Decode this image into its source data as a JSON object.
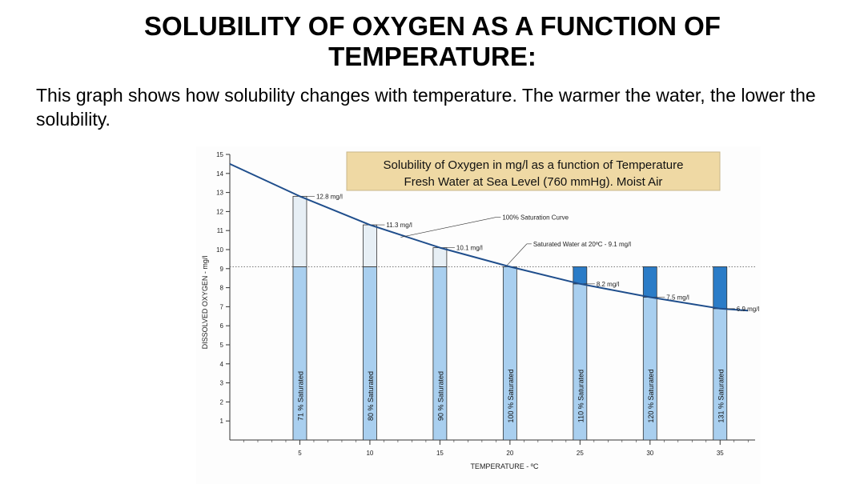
{
  "slide": {
    "title": "SOLUBILITY OF OXYGEN AS A FUNCTION OF TEMPERATURE:",
    "body": "This graph shows how solubility changes with temperature.  The warmer the water, the lower the solubility."
  },
  "chart_data": {
    "type": "bar",
    "title": "Solubility of Oxygen in mg/l as a function of Temperature",
    "subtitle": "Fresh Water at Sea Level (760 mmHg).  Moist Air",
    "xlabel": "TEMPERATURE - ºC",
    "ylabel": "DISSOLVED OXYGEN  -  mg/l",
    "xlim": [
      0,
      37.5
    ],
    "ylim": [
      0,
      15
    ],
    "x_ticks": [
      5,
      10,
      15,
      20,
      25,
      30,
      35
    ],
    "y_ticks": [
      1,
      2,
      3,
      4,
      5,
      6,
      7,
      8,
      9,
      10,
      11,
      12,
      13,
      14,
      15
    ],
    "reference_line": {
      "value": 9.1,
      "label": "Saturated Water at 20ºC - 9.1 mg/l"
    },
    "curve": {
      "label": "100% Saturation Curve",
      "x": [
        0,
        5,
        10,
        15,
        20,
        25,
        30,
        35,
        37
      ],
      "y": [
        14.5,
        12.8,
        11.3,
        10.1,
        9.1,
        8.2,
        7.5,
        6.9,
        6.8
      ]
    },
    "bars": [
      {
        "x": 5,
        "value": 12.8,
        "value_label": "12.8 mg/l",
        "saturation_label": "71 %  Saturated"
      },
      {
        "x": 10,
        "value": 11.3,
        "value_label": "11.3 mg/l",
        "saturation_label": "80 %  Saturated"
      },
      {
        "x": 15,
        "value": 10.1,
        "value_label": "10.1 mg/l",
        "saturation_label": "90 %  Saturated"
      },
      {
        "x": 20,
        "value": 9.1,
        "value_label": "",
        "saturation_label": "100 %  Saturated"
      },
      {
        "x": 25,
        "value": 8.2,
        "value_label": "8.2 mg/l",
        "saturation_label": "110 %  Saturated"
      },
      {
        "x": 30,
        "value": 7.5,
        "value_label": "7.5 mg/l",
        "saturation_label": "120 %  Saturated"
      },
      {
        "x": 35,
        "value": 6.9,
        "value_label": "6.9 mg/l",
        "saturation_label": "131 %  Saturated"
      }
    ],
    "colors": {
      "curve": "#1f4e8c",
      "bar_fill_saturated": "#a9cfef",
      "bar_fill_unsaturated": "#e7eff5",
      "bar_fill_supersaturated": "#2b7cc7",
      "title_box": "#efd9a4"
    }
  }
}
